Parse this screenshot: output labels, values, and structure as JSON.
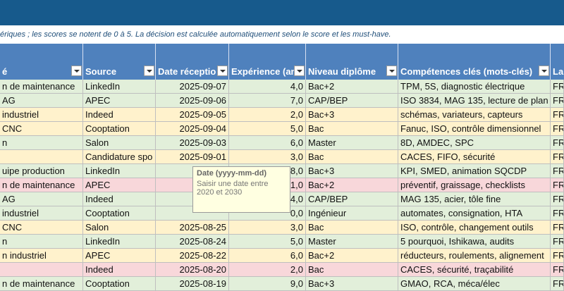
{
  "instruction": "ériques ; les scores se notent de 0 à 5. La décision est calculée automatiquement selon le score et les must-have.",
  "table": {
    "headers": [
      "é",
      "Source",
      "Date réceptio",
      "Expérience (an",
      "Niveau diplôme",
      "Compétences clés (mots-clés)",
      "La"
    ],
    "rows": [
      [
        "n de maintenance",
        "LinkedIn",
        "2025-09-07",
        "4,0",
        "Bac+2",
        "TPM, 5S, diagnostic électrique",
        "FR"
      ],
      [
        "AG",
        "APEC",
        "2025-09-06",
        "7,0",
        "CAP/BEP",
        "ISO 3834, MAG 135, lecture de plan",
        "FR"
      ],
      [
        " industriel",
        "Indeed",
        "2025-09-05",
        "2,0",
        "Bac+3",
        "schémas, variateurs, capteurs",
        "FR"
      ],
      [
        " CNC",
        "Cooptation",
        "2025-09-04",
        "5,0",
        "Bac",
        "Fanuc, ISO, contrôle dimensionnel",
        "FR"
      ],
      [
        "n",
        "Salon",
        "2025-09-03",
        "6,0",
        "Master",
        "8D, AMDEC, SPC",
        "FR"
      ],
      [
        null,
        "Candidature spo",
        "2025-09-01",
        "3,0",
        "Bac",
        "CACES, FIFO, sécurité",
        "FR"
      ],
      [
        "uipe production",
        "LinkedIn",
        null,
        "8,0",
        "Bac+3",
        "KPI, SMED, animation SQCDP",
        "FR"
      ],
      [
        "n de maintenance",
        "APEC",
        "202",
        "1,0",
        "Bac+2",
        "préventif, graissage, checklists",
        "FR"
      ],
      [
        "AG",
        "Indeed",
        "202",
        "4,0",
        "CAP/BEP",
        "MAG 135, acier, tôle fine",
        "FR"
      ],
      [
        " industriel",
        "Cooptation",
        null,
        "0,0",
        "Ingénieur",
        "automates, consignation, HTA",
        "FR"
      ],
      [
        " CNC",
        "Salon",
        "2025-08-25",
        "3,0",
        "Bac",
        "ISO, contrôle, changement outils",
        "FR"
      ],
      [
        "n",
        "LinkedIn",
        "2025-08-24",
        "5,0",
        "Master",
        "5 pourquoi, Ishikawa, audits",
        "FR"
      ],
      [
        "n industriel",
        "APEC",
        "2025-08-22",
        "6,0",
        "Bac+2",
        "réducteurs, roulements, alignement",
        "FR"
      ],
      [
        null,
        "Indeed",
        "2025-08-20",
        "2,0",
        "Bac",
        "CACES, sécurité, traçabilité",
        "FR"
      ],
      [
        "n de maintenance",
        "Cooptation",
        "2025-08-19",
        "9,0",
        "Bac+3",
        "GMAO, RCA, méca/élec",
        "FR"
      ]
    ],
    "row_colors": [
      "#e2efda",
      "#e2efda",
      "#fff2cc",
      "#fff2cc",
      "#e2efda",
      "#fff2cc",
      "#e2efda",
      "#f8d7da",
      "#e2efda",
      "#e2efda",
      "#fff2cc",
      "#e2efda",
      "#fff2cc",
      "#f8d7da",
      "#e2efda"
    ]
  },
  "tooltip": {
    "title": "Date (yyyy-mm-dd)",
    "text": "Saisir une date entre 2020 et 2030"
  }
}
